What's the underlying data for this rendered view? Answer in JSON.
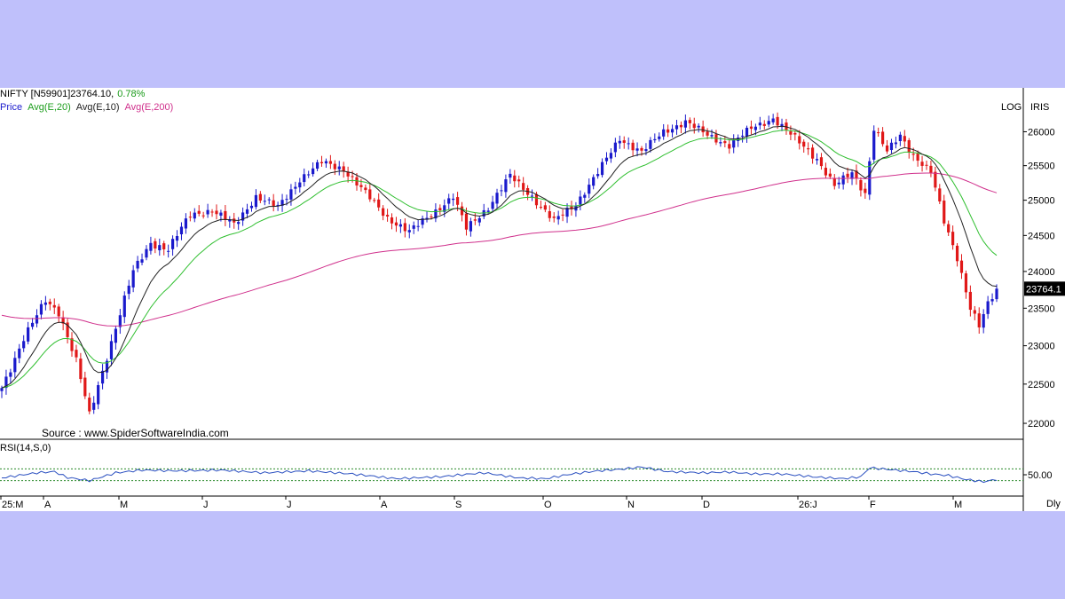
{
  "header": {
    "symbol": "NIFTY [N59901]23764.10,",
    "change": "0.78%",
    "legend": [
      {
        "label": "Price",
        "color": "#1a1acc"
      },
      {
        "label": "Avg(E,20)",
        "color": "#2fbf2f"
      },
      {
        "label": "Avg(E,10)",
        "color": "#222222"
      },
      {
        "label": "Avg(E,200)",
        "color": "#d0308c"
      }
    ]
  },
  "toolbar": {
    "log": "LOG",
    "iris": "IRIS"
  },
  "source": "Source : www.SpiderSoftwareIndia.com",
  "rsi": {
    "label": "RSI(14,S,0)",
    "level": "50.00"
  },
  "frequency": "Dly",
  "colors": {
    "up": "#1a1acc",
    "down": "#e01818",
    "ema20": "#2fbf2f",
    "ema10": "#222222",
    "ema200": "#d0308c",
    "rsi": "#2a4fc0",
    "last_price_bg": "#000000"
  },
  "chart_data": {
    "type": "candlestick",
    "scale": "log",
    "ylim": [
      21800,
      26500
    ],
    "yticks": [
      22000,
      22500,
      23000,
      23500,
      24000,
      24500,
      25000,
      25500,
      26000
    ],
    "x_tick_labels": [
      "25:M",
      "A",
      "M",
      "J",
      "J",
      "A",
      "S",
      "O",
      "N",
      "D",
      "26:J",
      "F",
      "M"
    ],
    "last_price": "23764.1",
    "price_path": [
      [
        0,
        22450
      ],
      [
        5,
        23100
      ],
      [
        10,
        23600
      ],
      [
        13,
        23450
      ],
      [
        17,
        22800
      ],
      [
        20,
        22100
      ],
      [
        25,
        23050
      ],
      [
        30,
        24000
      ],
      [
        34,
        24400
      ],
      [
        38,
        24300
      ],
      [
        43,
        24800
      ],
      [
        48,
        24850
      ],
      [
        53,
        24650
      ],
      [
        58,
        25050
      ],
      [
        63,
        24900
      ],
      [
        68,
        25300
      ],
      [
        73,
        25550
      ],
      [
        78,
        25450
      ],
      [
        83,
        25100
      ],
      [
        88,
        24750
      ],
      [
        93,
        24550
      ],
      [
        98,
        24800
      ],
      [
        103,
        25050
      ],
      [
        106,
        24600
      ],
      [
        111,
        24900
      ],
      [
        116,
        25350
      ],
      [
        121,
        25050
      ],
      [
        126,
        24700
      ],
      [
        131,
        24950
      ],
      [
        136,
        25400
      ],
      [
        141,
        25900
      ],
      [
        146,
        25700
      ],
      [
        151,
        26000
      ],
      [
        156,
        26150
      ],
      [
        161,
        25950
      ],
      [
        166,
        25800
      ],
      [
        171,
        26050
      ],
      [
        176,
        26200
      ],
      [
        181,
        25900
      ],
      [
        186,
        25600
      ],
      [
        190,
        25200
      ],
      [
        194,
        25400
      ],
      [
        197,
        25100
      ],
      [
        199,
        26050
      ],
      [
        202,
        25700
      ],
      [
        205,
        25950
      ],
      [
        208,
        25650
      ],
      [
        212,
        25400
      ],
      [
        215,
        24700
      ],
      [
        218,
        24200
      ],
      [
        221,
        23500
      ],
      [
        223,
        23250
      ],
      [
        225,
        23550
      ],
      [
        227,
        23764
      ]
    ],
    "ema_weights": {
      "ema10": 0.18,
      "ema20": 0.095,
      "ema200": 0.015
    },
    "ema200_start": 23420,
    "rsi": {
      "ylim": [
        0,
        100
      ],
      "level": 50,
      "bands": [
        35,
        65
      ],
      "values": [
        [
          0,
          42
        ],
        [
          8,
          55
        ],
        [
          12,
          58
        ],
        [
          15,
          43
        ],
        [
          20,
          35
        ],
        [
          26,
          55
        ],
        [
          32,
          62
        ],
        [
          40,
          60
        ],
        [
          50,
          62
        ],
        [
          60,
          55
        ],
        [
          70,
          60
        ],
        [
          80,
          52
        ],
        [
          90,
          40
        ],
        [
          100,
          45
        ],
        [
          110,
          55
        ],
        [
          118,
          42
        ],
        [
          124,
          40
        ],
        [
          130,
          52
        ],
        [
          136,
          60
        ],
        [
          142,
          65
        ],
        [
          146,
          70
        ],
        [
          152,
          58
        ],
        [
          160,
          55
        ],
        [
          166,
          57
        ],
        [
          172,
          52
        ],
        [
          178,
          52
        ],
        [
          186,
          44
        ],
        [
          192,
          40
        ],
        [
          196,
          45
        ],
        [
          198,
          68
        ],
        [
          204,
          62
        ],
        [
          208,
          58
        ],
        [
          212,
          52
        ],
        [
          216,
          48
        ],
        [
          220,
          38
        ],
        [
          224,
          32
        ],
        [
          227,
          38
        ]
      ]
    }
  }
}
